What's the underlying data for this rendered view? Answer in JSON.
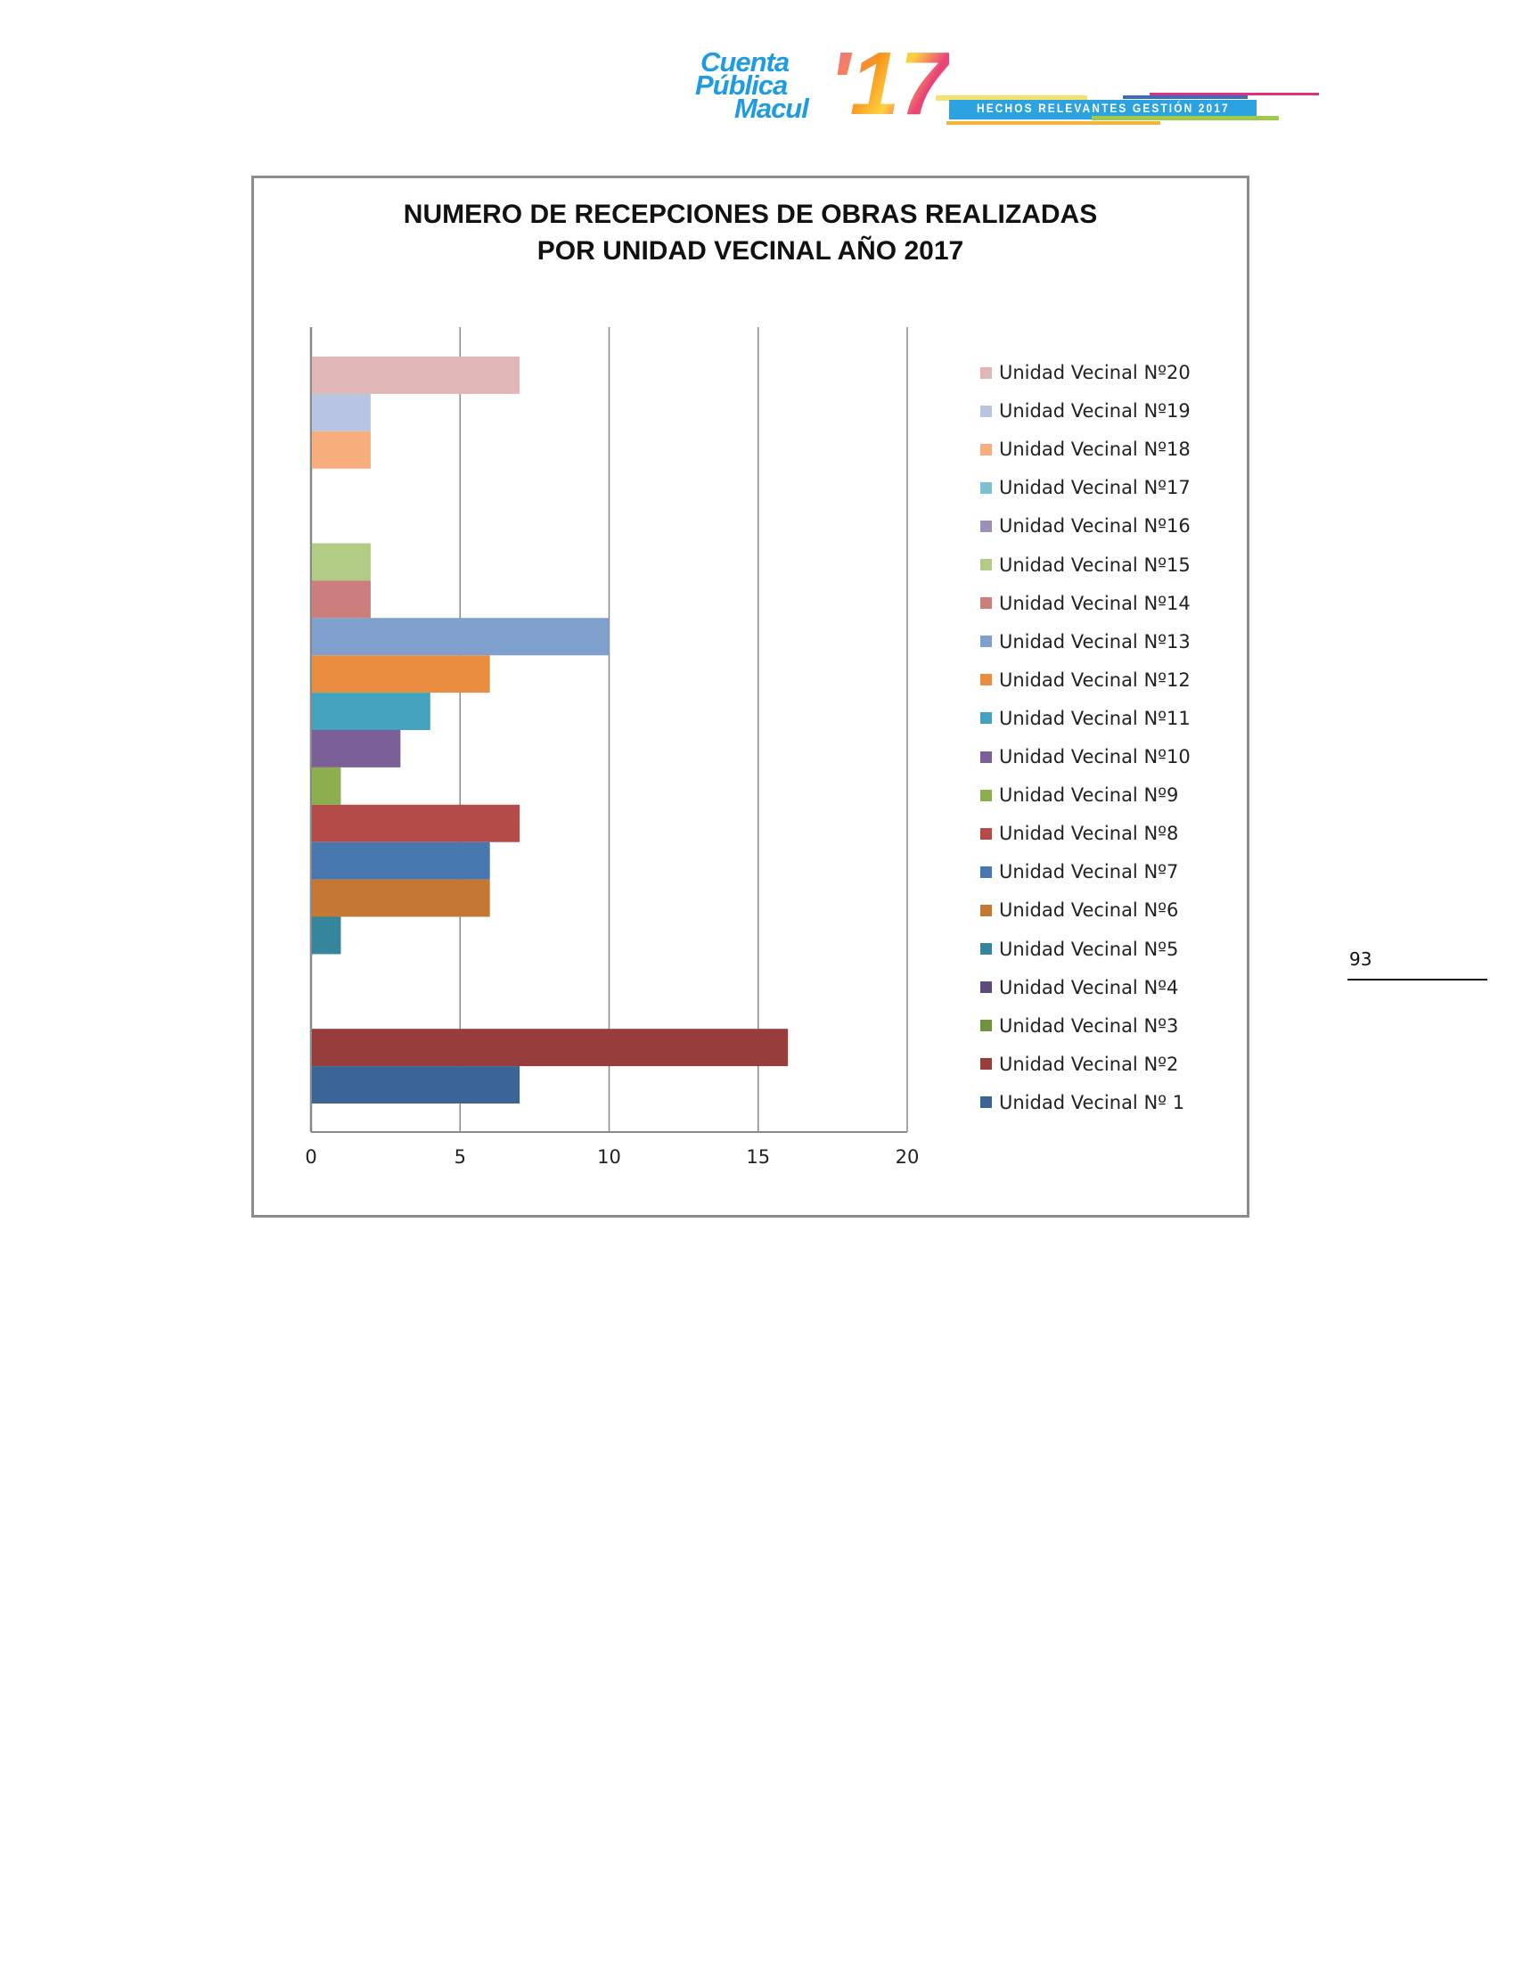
{
  "header": {
    "logo_text": [
      "Cuenta",
      "Pública",
      "Macul",
      "'17"
    ],
    "banner_text": "HECHOS RELEVANTES GESTIÓN 2017"
  },
  "page_number": "93",
  "chart_data": {
    "type": "bar",
    "orientation": "horizontal",
    "title": [
      "NUMERO DE RECEPCIONES DE OBRAS REALIZADAS",
      "POR UNIDAD VECINAL AÑO 2017"
    ],
    "xlabel": "",
    "ylabel": "",
    "xlim": [
      0,
      20
    ],
    "xticks": [
      "0",
      "5",
      "10",
      "15",
      "20"
    ],
    "grid": true,
    "legend_position": "right",
    "series": [
      {
        "name": "Unidad Vecinal Nº20",
        "value": 7,
        "color": "#e0b7b6"
      },
      {
        "name": "Unidad Vecinal Nº19",
        "value": 2,
        "color": "#b8c5e0"
      },
      {
        "name": "Unidad Vecinal Nº18",
        "value": 2,
        "color": "#f7ad7c"
      },
      {
        "name": "Unidad Vecinal Nº17",
        "value": 0,
        "color": "#7ebfd4"
      },
      {
        "name": "Unidad Vecinal Nº16",
        "value": 0,
        "color": "#9d8fb8"
      },
      {
        "name": "Unidad Vecinal Nº15",
        "value": 2,
        "color": "#b2cb85"
      },
      {
        "name": "Unidad Vecinal Nº14",
        "value": 2,
        "color": "#cb7e7c"
      },
      {
        "name": "Unidad Vecinal Nº13",
        "value": 10,
        "color": "#7f9fcc"
      },
      {
        "name": "Unidad Vecinal Nº12",
        "value": 6,
        "color": "#e98e40"
      },
      {
        "name": "Unidad Vecinal Nº11",
        "value": 4,
        "color": "#43a2bd"
      },
      {
        "name": "Unidad Vecinal Nº10",
        "value": 3,
        "color": "#7a5f98"
      },
      {
        "name": "Unidad Vecinal Nº9",
        "value": 1,
        "color": "#8dae4f"
      },
      {
        "name": "Unidad Vecinal Nº8",
        "value": 7,
        "color": "#b54b49"
      },
      {
        "name": "Unidad Vecinal Nº7",
        "value": 6,
        "color": "#4877b0"
      },
      {
        "name": "Unidad Vecinal Nº6",
        "value": 6,
        "color": "#c47834"
      },
      {
        "name": "Unidad Vecinal Nº5",
        "value": 1,
        "color": "#35869c"
      },
      {
        "name": "Unidad Vecinal Nº4",
        "value": 0,
        "color": "#5f4a80"
      },
      {
        "name": "Unidad Vecinal Nº3",
        "value": 0,
        "color": "#72913b"
      },
      {
        "name": "Unidad Vecinal Nº2",
        "value": 16,
        "color": "#973d3b"
      },
      {
        "name": "Unidad Vecinal Nº 1",
        "value": 7,
        "color": "#3b6595"
      }
    ]
  }
}
